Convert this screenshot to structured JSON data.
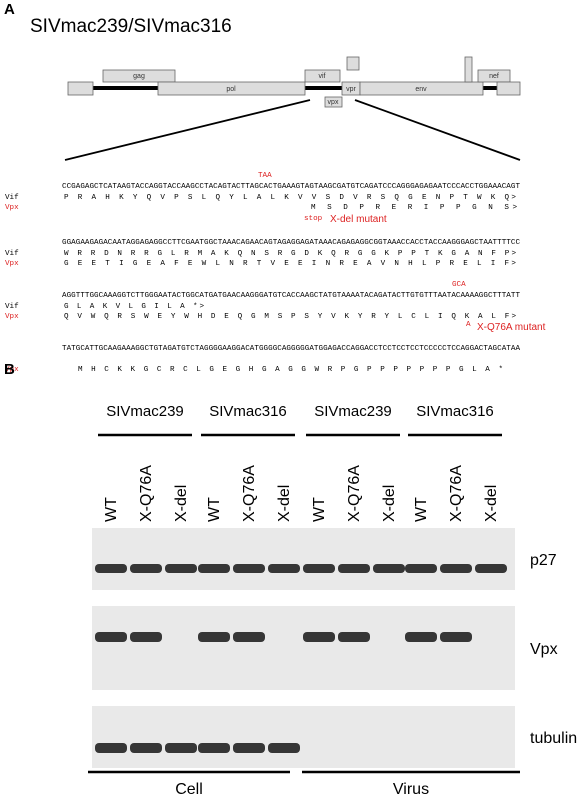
{
  "panel_a": {
    "label": "A",
    "title": "SIVmac239/SIVmac316",
    "genome": [
      "gag",
      "pol",
      "vif",
      "vpr",
      "vpx",
      "env",
      "nef"
    ],
    "vif_label": "Vif",
    "vpx_label": "Vpx",
    "blocks": [
      {
        "above": "TAA",
        "dna": "CCGAGAGCTCATAAGTACCAGGTACCAAGCCTACAGTACTTAGCACTGAAAGTAGTAAGCGATGTCAGATCCCAGGGAGAGAATCCCACCTGGAAACAGT",
        "vif": "P R A H K Y Q V P S L Q Y L A L K V V S D V R S Q G E N P T W K Q>",
        "vpx": "M S D P R E R I P P G N S>",
        "below_codon": "stop",
        "below_note": "X-del mutant"
      },
      {
        "dna": "GGAGAAGAGACAATAGGAGAGGCCTTCGAATGGCTAAACAGAACAGTAGAGGAGATAAACAGAGAGGCGGTAAACCACCTACCAAGGGAGCTAATTTTCC",
        "vif": "W R R D N R R G L R M A K Q N S R G D K Q R G G K P P T K G A N F P>",
        "vpx": "G E E T I G E A F E W L N R T V E E I N R E A V N H L P R E L I F>"
      },
      {
        "above": "GCA",
        "dna": "AGGTTTGGCAAAGGTCTTGGGAATACTGGCATGATGAACAAGGGATGTCACCAAGCTATGTAAAATACAGATACTTGTGTTTAATACAAAAGGCTTTATT",
        "vif": "G L A K V L G I L A *>",
        "vpx": "Q V W Q R S W E Y W H D E Q G M S P S Y V K Y R Y L C L I Q K A L F>",
        "below_codon": "A",
        "below_note": "X-Q76A mutant"
      },
      {
        "dna": "TATGCATTGCAAGAAAGGCTGTAGATGTCTAGGGGAAGGACATGGGGCAGGGGGATGGAGACCAGGACCTCCTCCTCCTCCCCCTCCAGGACTAGCATAA",
        "vpx": "M H C K K G C R C L G E G H G A G G W R P G P P P P P P P G L A *"
      }
    ]
  },
  "panel_b": {
    "label": "B",
    "groups": [
      "SIVmac239",
      "SIVmac316",
      "SIVmac239",
      "SIVmac316"
    ],
    "lanes": [
      "WT",
      "X-Q76A",
      "X-del"
    ],
    "rows": [
      "p27",
      "Vpx",
      "tubulin"
    ],
    "fractions": [
      "Cell",
      "Virus"
    ]
  }
}
